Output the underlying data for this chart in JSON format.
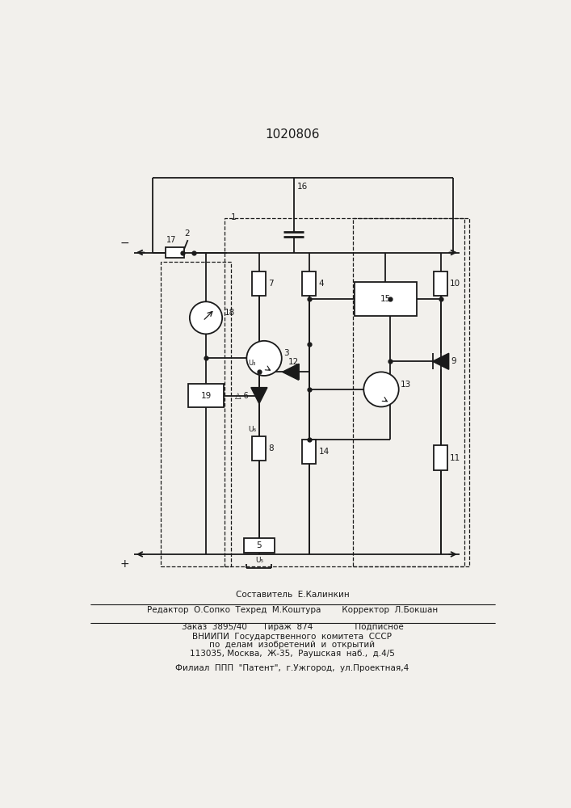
{
  "title": "1020806",
  "bg_color": "#f2f0ec",
  "lc": "#1a1a1a",
  "footer": [
    "Составитель  Е.Калинкин",
    "Редактор  О.Сопко  Техред  М.Коштура        Корректор  Л.Бокшан",
    "Заказ  3895/40      Тираж  874                Подписное",
    "ВНИИПИ  Государственного  комитета  СССР",
    "по  делам  изобретений  и  открытий",
    "113035, Москва,  Ж-35,  Раушская  наб.,  д.4/5",
    "Филиал  ППП  \"Патент\",  г.Ужгород,  ул.Проектная,4"
  ]
}
